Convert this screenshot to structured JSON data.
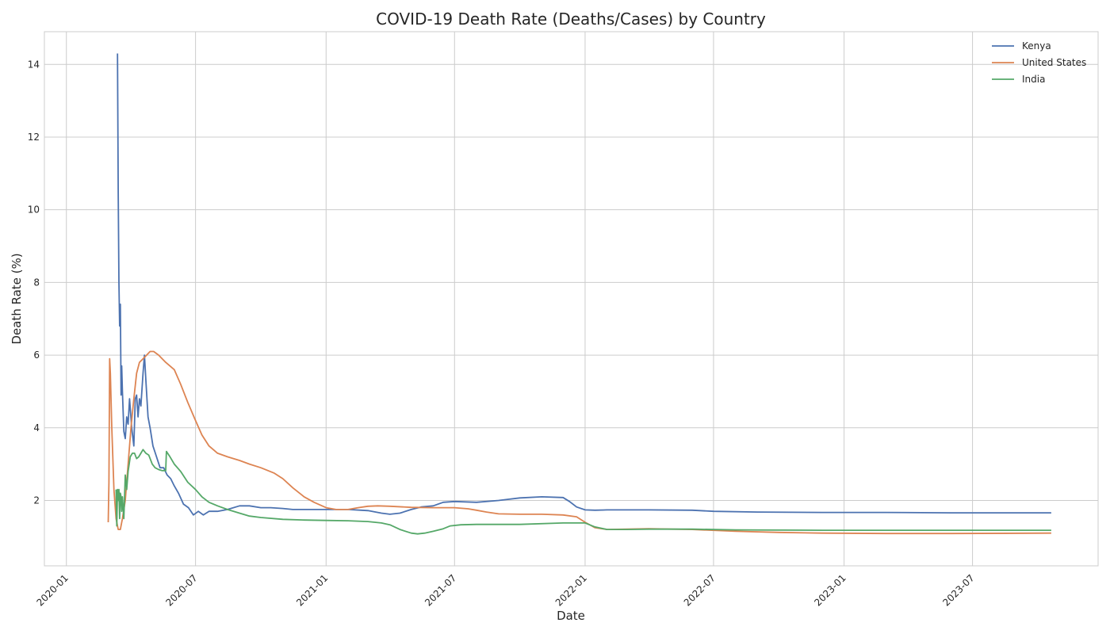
{
  "chart_data": {
    "type": "line",
    "title": "COVID-19 Death Rate (Deaths/Cases) by Country",
    "xlabel": "Date",
    "ylabel": "Death Rate (%)",
    "xlim": [
      "2019-12-01",
      "2023-12-25"
    ],
    "ylim": [
      0.2,
      14.9
    ],
    "x_ticks": [
      "2020-01",
      "2020-07",
      "2021-01",
      "2021-07",
      "2022-01",
      "2022-07",
      "2023-01",
      "2023-07"
    ],
    "y_ticks": [
      2,
      4,
      6,
      8,
      10,
      12,
      14
    ],
    "grid": true,
    "legend_position": "top-right",
    "series": [
      {
        "name": "Kenya",
        "color": "#4c72b0",
        "points": [
          [
            "2020-03-13",
            14.3
          ],
          [
            "2020-03-14",
            10.5
          ],
          [
            "2020-03-15",
            8.0
          ],
          [
            "2020-03-16",
            6.8
          ],
          [
            "2020-03-17",
            7.4
          ],
          [
            "2020-03-18",
            4.9
          ],
          [
            "2020-03-19",
            5.7
          ],
          [
            "2020-03-20",
            5.0
          ],
          [
            "2020-03-22",
            3.9
          ],
          [
            "2020-03-24",
            3.7
          ],
          [
            "2020-03-26",
            4.3
          ],
          [
            "2020-03-28",
            4.1
          ],
          [
            "2020-03-30",
            4.8
          ],
          [
            "2020-04-02",
            4.0
          ],
          [
            "2020-04-05",
            3.5
          ],
          [
            "2020-04-07",
            4.8
          ],
          [
            "2020-04-09",
            4.9
          ],
          [
            "2020-04-11",
            4.3
          ],
          [
            "2020-04-13",
            4.8
          ],
          [
            "2020-04-15",
            4.6
          ],
          [
            "2020-04-18",
            5.5
          ],
          [
            "2020-04-20",
            6.0
          ],
          [
            "2020-04-22",
            5.3
          ],
          [
            "2020-04-25",
            4.3
          ],
          [
            "2020-04-28",
            4.0
          ],
          [
            "2020-05-02",
            3.5
          ],
          [
            "2020-05-07",
            3.2
          ],
          [
            "2020-05-12",
            2.9
          ],
          [
            "2020-05-17",
            2.9
          ],
          [
            "2020-05-22",
            2.7
          ],
          [
            "2020-05-27",
            2.6
          ],
          [
            "2020-06-01",
            2.4
          ],
          [
            "2020-06-07",
            2.2
          ],
          [
            "2020-06-14",
            1.9
          ],
          [
            "2020-06-21",
            1.8
          ],
          [
            "2020-06-28",
            1.6
          ],
          [
            "2020-07-05",
            1.7
          ],
          [
            "2020-07-12",
            1.6
          ],
          [
            "2020-07-20",
            1.7
          ],
          [
            "2020-08-01",
            1.7
          ],
          [
            "2020-08-15",
            1.75
          ],
          [
            "2020-09-01",
            1.85
          ],
          [
            "2020-09-15",
            1.85
          ],
          [
            "2020-10-01",
            1.8
          ],
          [
            "2020-10-15",
            1.8
          ],
          [
            "2020-11-01",
            1.78
          ],
          [
            "2020-11-15",
            1.75
          ],
          [
            "2020-12-01",
            1.75
          ],
          [
            "2021-01-01",
            1.75
          ],
          [
            "2021-02-01",
            1.75
          ],
          [
            "2021-03-01",
            1.72
          ],
          [
            "2021-03-20",
            1.65
          ],
          [
            "2021-04-01",
            1.62
          ],
          [
            "2021-04-15",
            1.65
          ],
          [
            "2021-05-01",
            1.75
          ],
          [
            "2021-05-15",
            1.82
          ],
          [
            "2021-06-01",
            1.85
          ],
          [
            "2021-06-15",
            1.95
          ],
          [
            "2021-07-01",
            1.97
          ],
          [
            "2021-08-01",
            1.95
          ],
          [
            "2021-09-01",
            2.0
          ],
          [
            "2021-10-01",
            2.07
          ],
          [
            "2021-11-01",
            2.1
          ],
          [
            "2021-12-01",
            2.08
          ],
          [
            "2021-12-10",
            1.97
          ],
          [
            "2021-12-20",
            1.82
          ],
          [
            "2022-01-01",
            1.74
          ],
          [
            "2022-01-15",
            1.73
          ],
          [
            "2022-02-01",
            1.74
          ],
          [
            "2022-04-01",
            1.74
          ],
          [
            "2022-06-01",
            1.73
          ],
          [
            "2022-07-01",
            1.7
          ],
          [
            "2022-09-01",
            1.68
          ],
          [
            "2022-12-01",
            1.67
          ],
          [
            "2023-03-01",
            1.67
          ],
          [
            "2023-06-01",
            1.66
          ],
          [
            "2023-10-20",
            1.66
          ]
        ]
      },
      {
        "name": "United States",
        "color": "#dd8452",
        "points": [
          [
            "2020-02-29",
            1.4
          ],
          [
            "2020-03-01",
            2.5
          ],
          [
            "2020-03-02",
            5.9
          ],
          [
            "2020-03-03",
            5.5
          ],
          [
            "2020-03-05",
            4.0
          ],
          [
            "2020-03-08",
            2.3
          ],
          [
            "2020-03-11",
            1.5
          ],
          [
            "2020-03-14",
            1.2
          ],
          [
            "2020-03-17",
            1.2
          ],
          [
            "2020-03-20",
            1.5
          ],
          [
            "2020-03-24",
            2.0
          ],
          [
            "2020-03-28",
            3.0
          ],
          [
            "2020-04-01",
            4.0
          ],
          [
            "2020-04-05",
            4.8
          ],
          [
            "2020-04-09",
            5.5
          ],
          [
            "2020-04-13",
            5.8
          ],
          [
            "2020-04-18",
            5.9
          ],
          [
            "2020-04-23",
            6.0
          ],
          [
            "2020-04-28",
            6.1
          ],
          [
            "2020-05-03",
            6.1
          ],
          [
            "2020-05-10",
            6.0
          ],
          [
            "2020-05-20",
            5.8
          ],
          [
            "2020-06-01",
            5.6
          ],
          [
            "2020-06-10",
            5.2
          ],
          [
            "2020-06-20",
            4.7
          ],
          [
            "2020-07-01",
            4.2
          ],
          [
            "2020-07-10",
            3.8
          ],
          [
            "2020-07-20",
            3.5
          ],
          [
            "2020-08-01",
            3.3
          ],
          [
            "2020-08-15",
            3.2
          ],
          [
            "2020-09-01",
            3.1
          ],
          [
            "2020-09-15",
            3.0
          ],
          [
            "2020-10-01",
            2.9
          ],
          [
            "2020-10-20",
            2.75
          ],
          [
            "2020-11-01",
            2.6
          ],
          [
            "2020-11-15",
            2.35
          ],
          [
            "2020-12-01",
            2.1
          ],
          [
            "2020-12-15",
            1.95
          ],
          [
            "2021-01-01",
            1.8
          ],
          [
            "2021-01-15",
            1.75
          ],
          [
            "2021-02-01",
            1.75
          ],
          [
            "2021-02-15",
            1.8
          ],
          [
            "2021-03-01",
            1.84
          ],
          [
            "2021-03-15",
            1.85
          ],
          [
            "2021-04-01",
            1.84
          ],
          [
            "2021-05-01",
            1.81
          ],
          [
            "2021-06-01",
            1.8
          ],
          [
            "2021-07-01",
            1.8
          ],
          [
            "2021-07-20",
            1.77
          ],
          [
            "2021-08-01",
            1.73
          ],
          [
            "2021-08-15",
            1.68
          ],
          [
            "2021-09-01",
            1.63
          ],
          [
            "2021-10-01",
            1.62
          ],
          [
            "2021-11-01",
            1.62
          ],
          [
            "2021-12-01",
            1.6
          ],
          [
            "2021-12-20",
            1.55
          ],
          [
            "2022-01-01",
            1.4
          ],
          [
            "2022-01-15",
            1.25
          ],
          [
            "2022-02-01",
            1.2
          ],
          [
            "2022-04-01",
            1.22
          ],
          [
            "2022-06-01",
            1.2
          ],
          [
            "2022-08-01",
            1.15
          ],
          [
            "2022-10-01",
            1.12
          ],
          [
            "2022-12-01",
            1.1
          ],
          [
            "2023-03-01",
            1.09
          ],
          [
            "2023-06-01",
            1.09
          ],
          [
            "2023-10-20",
            1.1
          ]
        ]
      },
      {
        "name": "India",
        "color": "#55a868",
        "points": [
          [
            "2020-03-11",
            2.3
          ],
          [
            "2020-03-12",
            1.3
          ],
          [
            "2020-03-13",
            2.3
          ],
          [
            "2020-03-14",
            2.0
          ],
          [
            "2020-03-15",
            2.3
          ],
          [
            "2020-03-16",
            1.5
          ],
          [
            "2020-03-17",
            2.2
          ],
          [
            "2020-03-18",
            2.1
          ],
          [
            "2020-03-19",
            1.7
          ],
          [
            "2020-03-20",
            2.1
          ],
          [
            "2020-03-22",
            1.5
          ],
          [
            "2020-03-24",
            2.7
          ],
          [
            "2020-03-26",
            2.3
          ],
          [
            "2020-03-28",
            2.8
          ],
          [
            "2020-03-31",
            3.2
          ],
          [
            "2020-04-03",
            3.3
          ],
          [
            "2020-04-06",
            3.3
          ],
          [
            "2020-04-09",
            3.15
          ],
          [
            "2020-04-12",
            3.2
          ],
          [
            "2020-04-15",
            3.3
          ],
          [
            "2020-04-18",
            3.4
          ],
          [
            "2020-04-22",
            3.3
          ],
          [
            "2020-04-26",
            3.25
          ],
          [
            "2020-05-01",
            3.0
          ],
          [
            "2020-05-05",
            2.9
          ],
          [
            "2020-05-10",
            2.85
          ],
          [
            "2020-05-15",
            2.82
          ],
          [
            "2020-05-20",
            2.82
          ],
          [
            "2020-05-21",
            3.35
          ],
          [
            "2020-05-26",
            3.2
          ],
          [
            "2020-06-01",
            3.0
          ],
          [
            "2020-06-10",
            2.8
          ],
          [
            "2020-06-20",
            2.5
          ],
          [
            "2020-07-01",
            2.3
          ],
          [
            "2020-07-10",
            2.1
          ],
          [
            "2020-07-20",
            1.95
          ],
          [
            "2020-08-01",
            1.85
          ],
          [
            "2020-08-15",
            1.75
          ],
          [
            "2020-09-01",
            1.65
          ],
          [
            "2020-09-15",
            1.57
          ],
          [
            "2020-10-01",
            1.53
          ],
          [
            "2020-11-01",
            1.48
          ],
          [
            "2020-12-01",
            1.46
          ],
          [
            "2021-01-01",
            1.45
          ],
          [
            "2021-02-01",
            1.44
          ],
          [
            "2021-03-01",
            1.42
          ],
          [
            "2021-03-20",
            1.38
          ],
          [
            "2021-04-01",
            1.33
          ],
          [
            "2021-04-15",
            1.2
          ],
          [
            "2021-05-01",
            1.1
          ],
          [
            "2021-05-10",
            1.08
          ],
          [
            "2021-05-20",
            1.1
          ],
          [
            "2021-06-01",
            1.15
          ],
          [
            "2021-06-15",
            1.22
          ],
          [
            "2021-06-25",
            1.3
          ],
          [
            "2021-07-10",
            1.33
          ],
          [
            "2021-08-01",
            1.34
          ],
          [
            "2021-10-01",
            1.34
          ],
          [
            "2021-12-01",
            1.38
          ],
          [
            "2022-01-01",
            1.38
          ],
          [
            "2022-01-15",
            1.27
          ],
          [
            "2022-02-01",
            1.2
          ],
          [
            "2022-03-01",
            1.2
          ],
          [
            "2022-04-01",
            1.21
          ],
          [
            "2022-06-01",
            1.21
          ],
          [
            "2022-08-01",
            1.19
          ],
          [
            "2022-12-01",
            1.18
          ],
          [
            "2023-06-01",
            1.18
          ],
          [
            "2023-10-20",
            1.18
          ]
        ]
      }
    ]
  }
}
